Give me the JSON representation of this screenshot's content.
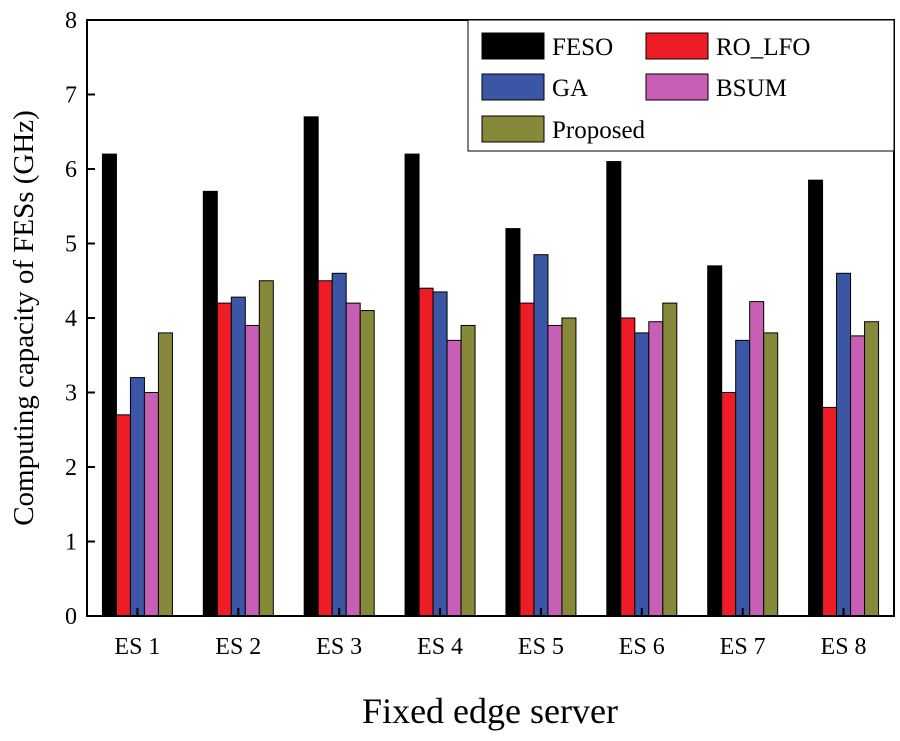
{
  "chart_data": {
    "type": "bar",
    "xlabel": "Fixed edge server",
    "ylabel": "Computing  capacity  of FESs (GHz)",
    "ylim": [
      0,
      8
    ],
    "yticks": [
      "0",
      "1",
      "2",
      "3",
      "4",
      "5",
      "6",
      "7",
      "8"
    ],
    "categories": [
      "ES 1",
      "ES 2",
      "ES 3",
      "ES 4",
      "ES 5",
      "ES 6",
      "ES 7",
      "ES 8"
    ],
    "legend_position": "top-right",
    "series": [
      {
        "name": "FESO",
        "color": "#000000",
        "values": [
          6.2,
          5.7,
          6.7,
          6.2,
          5.2,
          6.1,
          4.7,
          5.85
        ]
      },
      {
        "name": "RO_LFO",
        "color": "#ee1c24",
        "values": [
          2.7,
          4.2,
          4.5,
          4.4,
          4.2,
          4.0,
          3.0,
          2.8
        ]
      },
      {
        "name": "GA",
        "color": "#3a56a5",
        "values": [
          3.2,
          4.28,
          4.6,
          4.35,
          4.85,
          3.8,
          3.7,
          4.6
        ]
      },
      {
        "name": "BSUM",
        "color": "#c75fb5",
        "values": [
          3.0,
          3.9,
          4.2,
          3.7,
          3.9,
          3.95,
          4.22,
          3.76
        ]
      },
      {
        "name": "Proposed",
        "color": "#86883a",
        "values": [
          3.8,
          4.5,
          4.1,
          3.9,
          4.0,
          4.2,
          3.8,
          3.95
        ]
      }
    ]
  }
}
